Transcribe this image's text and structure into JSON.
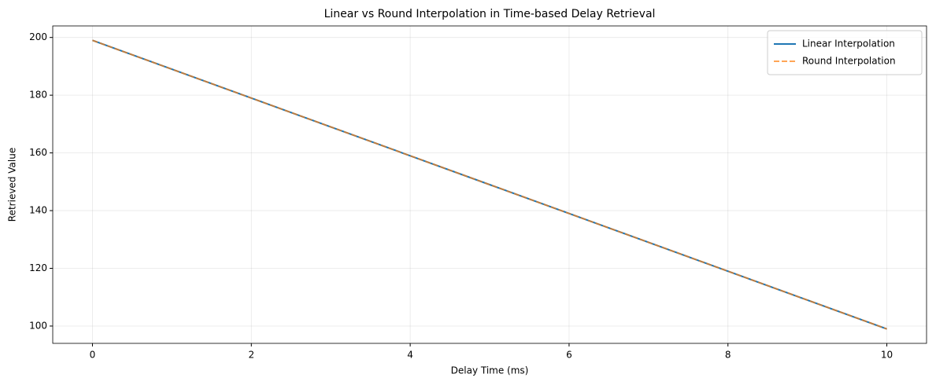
{
  "chart_data": {
    "type": "line",
    "title": "Linear vs Round Interpolation in Time-based Delay Retrieval",
    "x_label": "Delay Time (ms)",
    "y_label": "Retrieved Value",
    "x": [
      0,
      1,
      2,
      3,
      4,
      5,
      6,
      7,
      8,
      9,
      10
    ],
    "series": [
      {
        "name": "Linear Interpolation",
        "color": "#1f77b4",
        "linestyle": "solid",
        "values": [
          199,
          189,
          179,
          169,
          159,
          149,
          139,
          129,
          119,
          109,
          99
        ]
      },
      {
        "name": "Round Interpolation",
        "color": "#ff7f0e",
        "linestyle": "dashed",
        "values": [
          199,
          189,
          179,
          169,
          159,
          149,
          139,
          129,
          119,
          109,
          99
        ]
      }
    ],
    "xlim": [
      -0.5,
      10.5
    ],
    "xticks": [
      0,
      2,
      4,
      6,
      8,
      10
    ],
    "ylim": [
      94,
      204
    ],
    "yticks": [
      100,
      120,
      140,
      160,
      180,
      200
    ],
    "grid": true,
    "legend": "upper right"
  }
}
